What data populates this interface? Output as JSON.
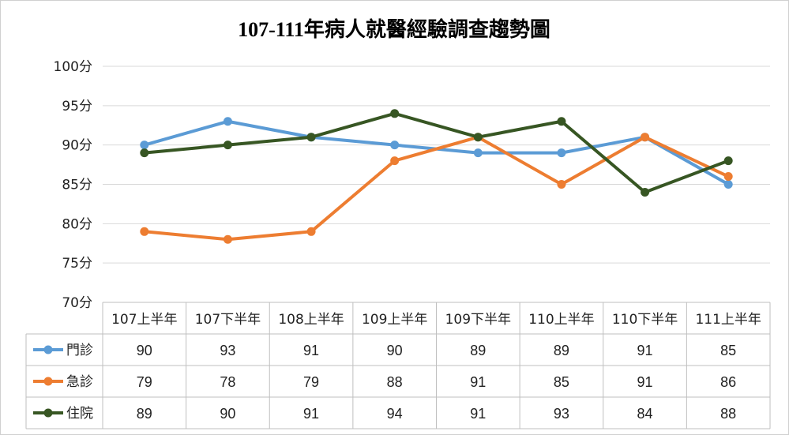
{
  "chart_data": {
    "type": "line",
    "title": "107-111年病人就醫經驗調查趨勢圖",
    "categories": [
      "107上半年",
      "107下半年",
      "108上半年",
      "109上半年",
      "109下半年",
      "110上半年",
      "110下半年",
      "111上半年"
    ],
    "ylim": [
      70,
      100
    ],
    "yticks": [
      {
        "value": 70,
        "label": "70分"
      },
      {
        "value": 75,
        "label": "75分"
      },
      {
        "value": 80,
        "label": "80分"
      },
      {
        "value": 85,
        "label": "85分"
      },
      {
        "value": 90,
        "label": "90分"
      },
      {
        "value": 95,
        "label": "95分"
      },
      {
        "value": 100,
        "label": "100分"
      }
    ],
    "grid": true,
    "data_table": true,
    "series": [
      {
        "name": "門診",
        "color": "#5b9bd5",
        "values": [
          90,
          93,
          91,
          90,
          89,
          89,
          91,
          85
        ]
      },
      {
        "name": "急診",
        "color": "#ed7d31",
        "values": [
          79,
          78,
          79,
          88,
          91,
          85,
          91,
          86
        ]
      },
      {
        "name": "住院",
        "color": "#375623",
        "values": [
          89,
          90,
          91,
          94,
          91,
          93,
          84,
          88
        ]
      }
    ]
  }
}
